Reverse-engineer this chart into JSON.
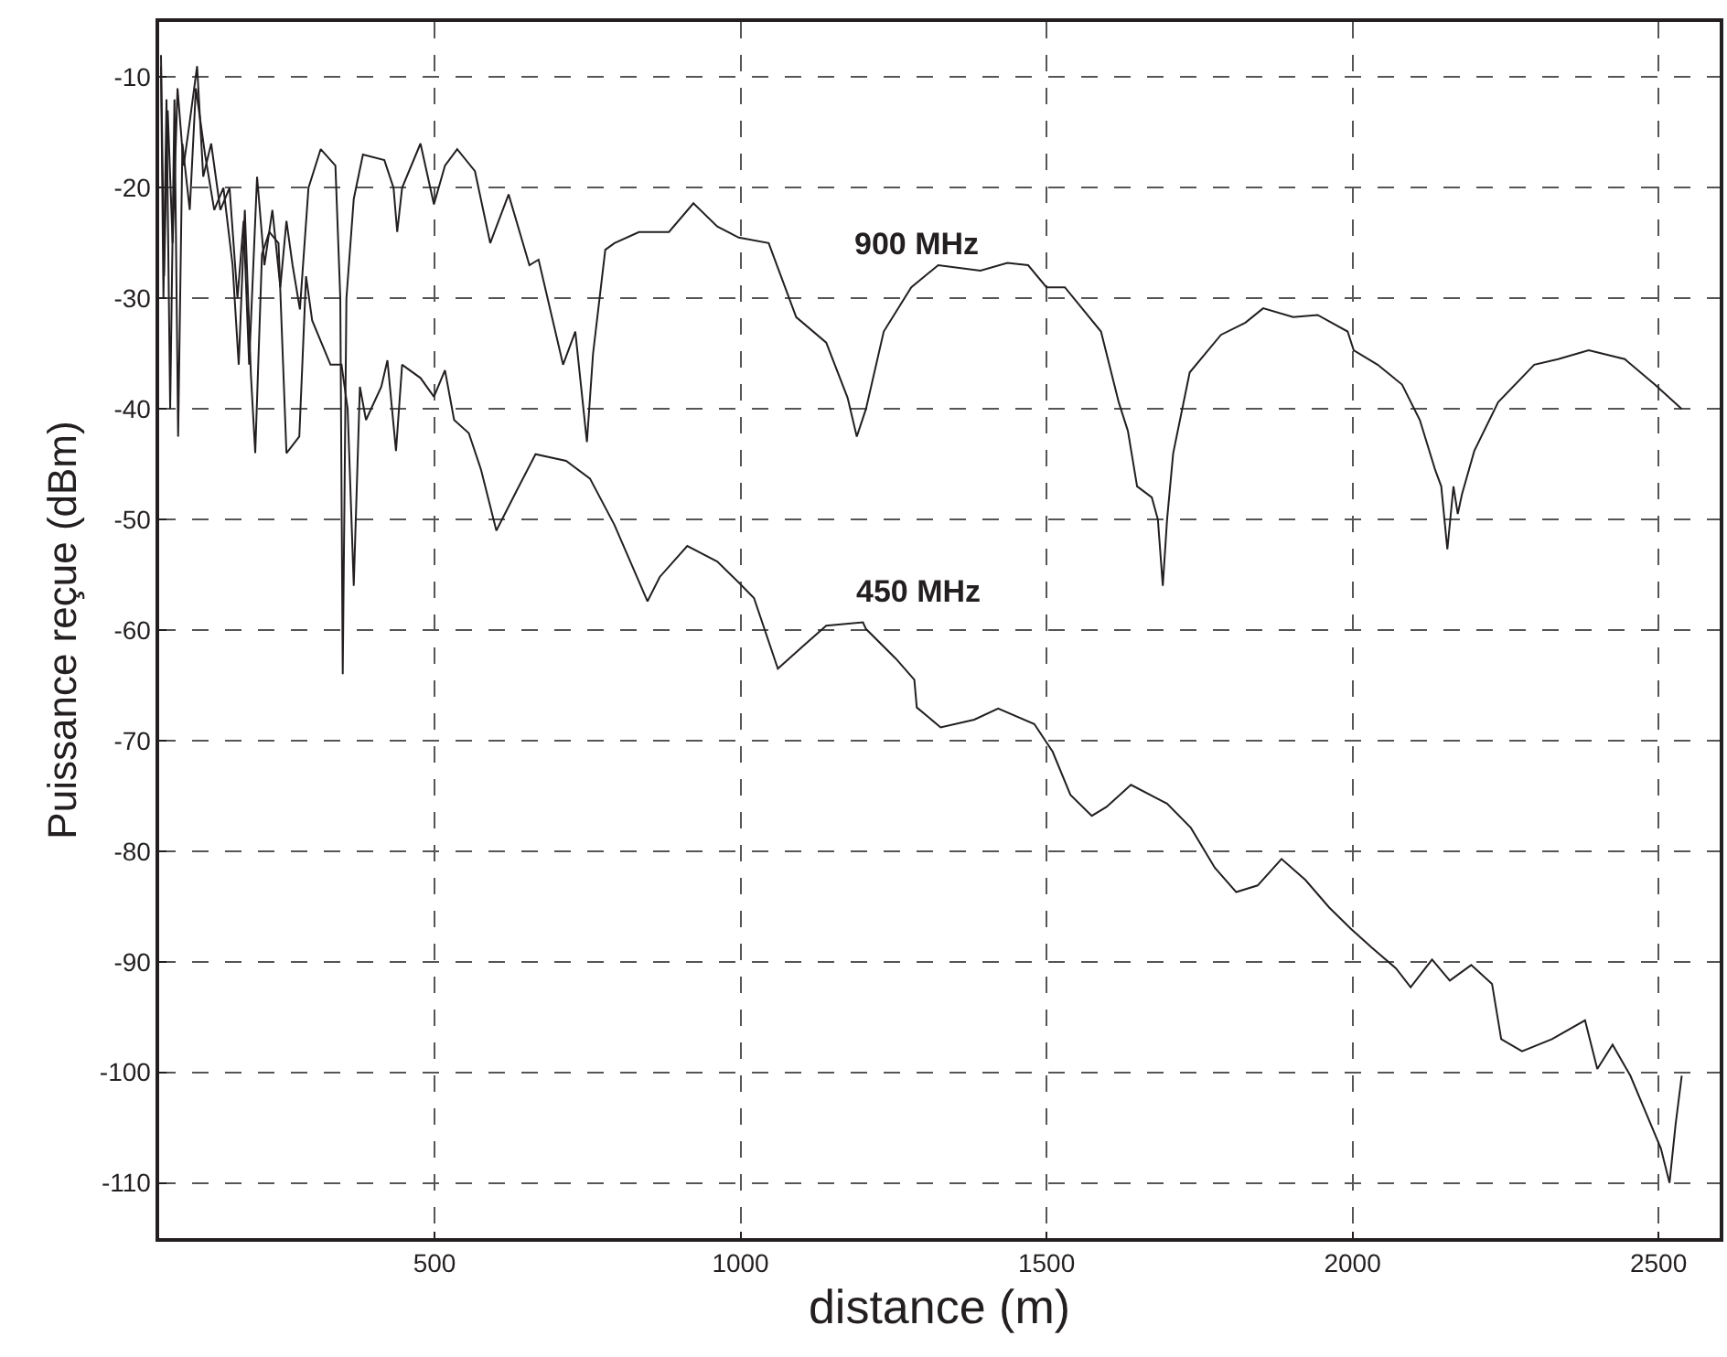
{
  "chart_data": {
    "type": "line",
    "xlabel": "distance (m)",
    "ylabel": "Puissance reçue (dBm)",
    "xlim": [
      50,
      2600
    ],
    "xticks": [
      500,
      1000,
      1500,
      2000,
      2500
    ],
    "ylim": [
      -115,
      -5
    ],
    "yticks": [
      -10,
      -20,
      -30,
      -40,
      -50,
      -60,
      -70,
      -80,
      -90,
      -100,
      -110
    ],
    "grid": true,
    "marker": "none",
    "line_style": "solid",
    "series": [
      {
        "color": "#231f20",
        "x": [
          53,
          58,
          64,
          72,
          80,
          90,
          100,
          112,
          122,
          135,
          150,
          165,
          178,
          188,
          197,
          210,
          222,
          235,
          248,
          258,
          268,
          280,
          294,
          314,
          338,
          346,
          350,
          356,
          368,
          383,
          418,
          433,
          439,
          447,
          477,
          499,
          517,
          537,
          566,
          591,
          621,
          655,
          670,
          710,
          730,
          749,
          759,
          779,
          794,
          834,
          883,
          923,
          962,
          997,
          1046,
          1091,
          1140,
          1175,
          1190,
          1205,
          1234,
          1279,
          1323,
          1392,
          1436,
          1470,
          1500,
          1530,
          1589,
          1618,
          1633,
          1648,
          1672,
          1682,
          1690,
          1697,
          1707,
          1734,
          1785,
          1825,
          1854,
          1903,
          1943,
          1992,
          2002,
          2041,
          2081,
          2110,
          2135,
          2145,
          2155,
          2165,
          2172,
          2179,
          2199,
          2238,
          2297,
          2336,
          2386,
          2445,
          2494,
          2538
        ],
        "values": [
          -8,
          -28,
          -13,
          -25,
          -11,
          -18,
          -14,
          -9,
          -19,
          -16,
          -22,
          -20,
          -30,
          -23,
          -36,
          -19,
          -27,
          -22,
          -29,
          -23,
          -27,
          -31,
          -20,
          -16.5,
          -18,
          -30,
          -64,
          -30,
          -21,
          -17,
          -17.5,
          -20,
          -24,
          -20,
          -16,
          -21.5,
          -18,
          -16.5,
          -18.5,
          -25,
          -20.6,
          -27,
          -26.5,
          -36,
          -33,
          -43,
          -35,
          -25.6,
          -25,
          -24,
          -24,
          -21.4,
          -23.5,
          -24.5,
          -25,
          -31.7,
          -34,
          -39,
          -42.5,
          -40,
          -33,
          -29,
          -27,
          -27.5,
          -26.8,
          -27,
          -29,
          -29,
          -33,
          -39.4,
          -42,
          -47,
          -48,
          -50,
          -56,
          -50,
          -44,
          -36.7,
          -33.3,
          -32.2,
          -30.9,
          -31.7,
          -31.5,
          -33,
          -34.7,
          -36,
          -37.8,
          -41,
          -45.5,
          -47,
          -52.7,
          -47,
          -49.5,
          -47.7,
          -43.8,
          -39.4,
          -36,
          -35.5,
          -34.7,
          -35.5,
          -37.8,
          -40
        ]
      },
      {
        "color": "#231f20",
        "x": [
          53,
          57,
          62,
          68,
          75,
          81,
          88,
          100,
          110,
          125,
          140,
          155,
          170,
          180,
          190,
          200,
          207,
          218,
          230,
          245,
          258,
          279,
          290,
          300,
          315,
          330,
          348,
          358,
          368,
          378,
          388,
          413,
          423,
          437,
          447,
          477,
          499,
          517,
          532,
          556,
          576,
          601,
          636,
          665,
          715,
          754,
          794,
          848,
          868,
          913,
          962,
          997,
          1022,
          1061,
          1101,
          1140,
          1200,
          1205,
          1254,
          1284,
          1288,
          1327,
          1382,
          1421,
          1480,
          1510,
          1539,
          1574,
          1598,
          1638,
          1697,
          1736,
          1775,
          1810,
          1845,
          1884,
          1923,
          1962,
          1997,
          2031,
          2071,
          2095,
          2130,
          2159,
          2194,
          2228,
          2243,
          2277,
          2326,
          2380,
          2400,
          2425,
          2454,
          2479,
          2504,
          2518,
          2528,
          2538
        ],
        "values": [
          -9,
          -30,
          -12,
          -40,
          -12,
          -42.5,
          -16,
          -22,
          -11,
          -17,
          -22,
          -20,
          -27,
          -36,
          -22,
          -37,
          -44,
          -26,
          -24,
          -25,
          -44,
          -42.5,
          -28,
          -32,
          -34,
          -36,
          -36,
          -40,
          -56,
          -38,
          -41,
          -38,
          -35.6,
          -43.8,
          -36,
          -37.2,
          -38.9,
          -36.5,
          -41,
          -42.2,
          -45.5,
          -51,
          -47.2,
          -44.1,
          -44.7,
          -46.3,
          -50.5,
          -57.4,
          -55.2,
          -52.4,
          -53.8,
          -55.7,
          -57.1,
          -63.5,
          -61.5,
          -59.6,
          -59.3,
          -59.9,
          -62.6,
          -64.5,
          -67,
          -68.8,
          -68.1,
          -67.1,
          -68.5,
          -71,
          -74.9,
          -76.8,
          -76,
          -74,
          -75.7,
          -77.9,
          -81.5,
          -83.7,
          -83.1,
          -80.7,
          -82.6,
          -85.1,
          -87,
          -88.7,
          -90.6,
          -92.3,
          -89.8,
          -91.7,
          -90.3,
          -92,
          -97,
          -98.1,
          -97,
          -95.3,
          -99.7,
          -97.5,
          -100.3,
          -103.6,
          -106.9,
          -110,
          -104.7,
          -100.3
        ]
      }
    ],
    "annotations": [
      "900 MHz",
      "450 MHz"
    ]
  }
}
